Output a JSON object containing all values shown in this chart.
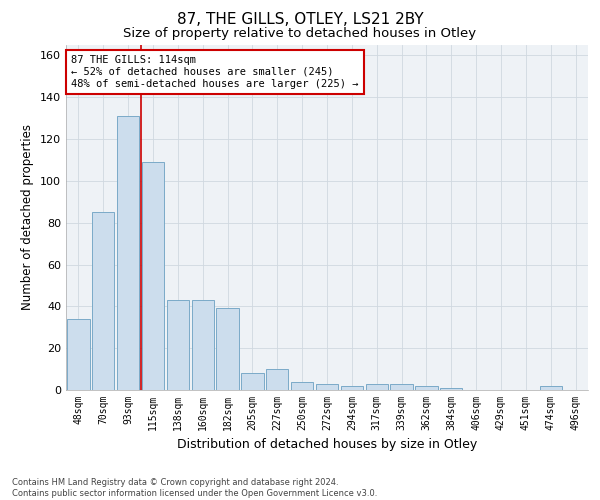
{
  "title": "87, THE GILLS, OTLEY, LS21 2BY",
  "subtitle": "Size of property relative to detached houses in Otley",
  "xlabel": "Distribution of detached houses by size in Otley",
  "ylabel": "Number of detached properties",
  "categories": [
    "48sqm",
    "70sqm",
    "93sqm",
    "115sqm",
    "138sqm",
    "160sqm",
    "182sqm",
    "205sqm",
    "227sqm",
    "250sqm",
    "272sqm",
    "294sqm",
    "317sqm",
    "339sqm",
    "362sqm",
    "384sqm",
    "406sqm",
    "429sqm",
    "451sqm",
    "474sqm",
    "496sqm"
  ],
  "values": [
    34,
    85,
    131,
    109,
    43,
    43,
    39,
    8,
    10,
    4,
    3,
    2,
    3,
    3,
    2,
    1,
    0,
    0,
    0,
    2,
    0
  ],
  "bar_color": "#ccdded",
  "bar_edge_color": "#7aaac8",
  "vline_color": "#cc0000",
  "annotation_text": "87 THE GILLS: 114sqm\n← 52% of detached houses are smaller (245)\n48% of semi-detached houses are larger (225) →",
  "annotation_box_color": "#ffffff",
  "annotation_box_edge_color": "#cc0000",
  "ylim": [
    0,
    165
  ],
  "yticks": [
    0,
    20,
    40,
    60,
    80,
    100,
    120,
    140,
    160
  ],
  "grid_color": "#d0d8e0",
  "bg_color": "#eef2f6",
  "footer": "Contains HM Land Registry data © Crown copyright and database right 2024.\nContains public sector information licensed under the Open Government Licence v3.0.",
  "title_fontsize": 11,
  "subtitle_fontsize": 9.5,
  "xlabel_fontsize": 9,
  "ylabel_fontsize": 8.5,
  "tick_fontsize": 7,
  "footer_fontsize": 6,
  "annotation_fontsize": 7.5,
  "vline_x": 2.5
}
